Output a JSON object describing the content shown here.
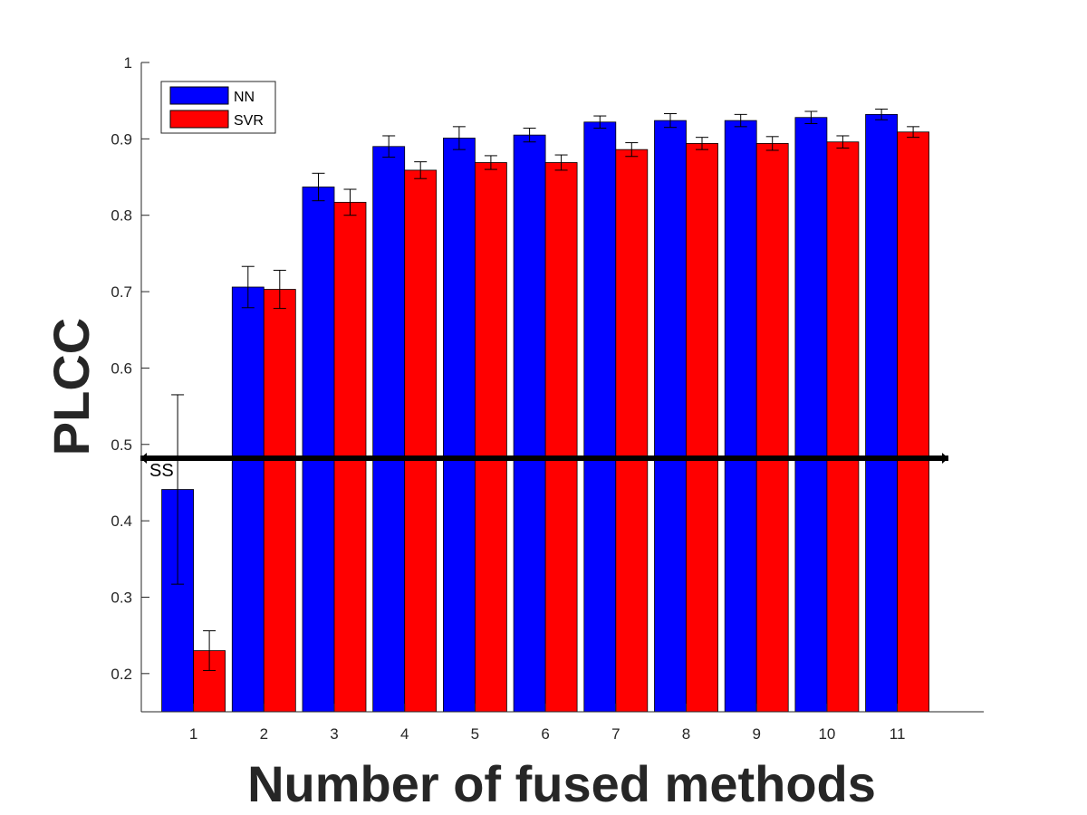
{
  "chart_data": {
    "type": "bar",
    "xlabel": "Number of fused methods",
    "ylabel": "PLCC",
    "ylim": [
      0.15,
      1.0
    ],
    "yticks": [
      "0.2",
      "0.3",
      "0.4",
      "0.5",
      "0.6",
      "0.7",
      "0.8",
      "0.9",
      "1"
    ],
    "categories": [
      "1",
      "2",
      "3",
      "4",
      "5",
      "6",
      "7",
      "8",
      "9",
      "10",
      "11"
    ],
    "series": [
      {
        "name": "NN",
        "color": "#0000ff",
        "values": [
          0.441,
          0.706,
          0.837,
          0.89,
          0.901,
          0.905,
          0.922,
          0.924,
          0.924,
          0.928,
          0.932
        ],
        "error": [
          0.124,
          0.027,
          0.018,
          0.014,
          0.015,
          0.009,
          0.008,
          0.009,
          0.008,
          0.008,
          0.007
        ]
      },
      {
        "name": "SVR",
        "color": "#ff0000",
        "values": [
          0.23,
          0.703,
          0.817,
          0.859,
          0.869,
          0.869,
          0.886,
          0.894,
          0.894,
          0.896,
          0.909
        ],
        "error": [
          0.026,
          0.025,
          0.017,
          0.011,
          0.009,
          0.01,
          0.009,
          0.008,
          0.009,
          0.008,
          0.007
        ]
      }
    ],
    "reference_line": {
      "label": "SS",
      "value": 0.482,
      "color": "#000000"
    },
    "legend": {
      "placement": "top-left",
      "entries": [
        "NN",
        "SVR"
      ]
    },
    "grid": false
  }
}
